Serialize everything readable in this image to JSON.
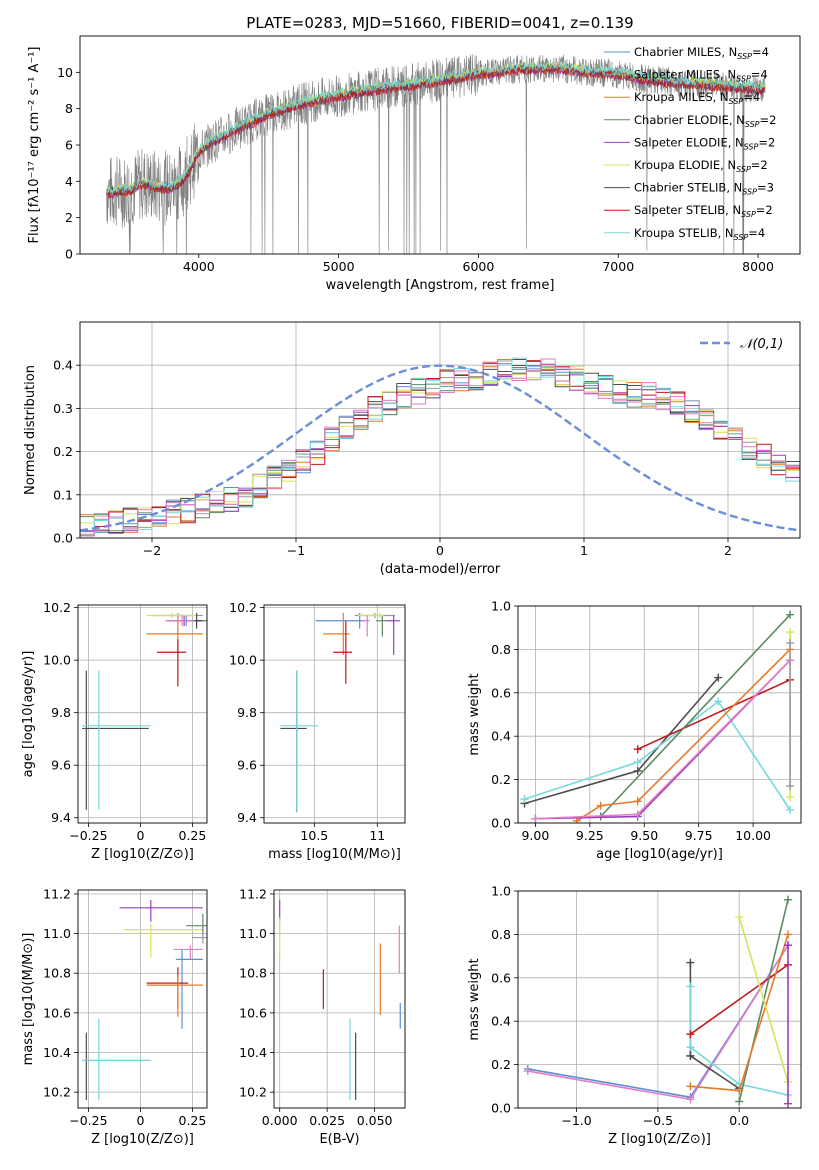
{
  "title": "PLATE=0283, MJD=51660, FIBERID=0041, z=0.139",
  "colors": {
    "chabrier_miles": "#5b8fd6",
    "salpeter_miles": "#9a9a9a",
    "kroupa_miles": "#e8792a",
    "chabrier_elodie": "#5a8a63",
    "salpeter_elodie": "#9a3fbf",
    "kroupa_elodie": "#d7e35a",
    "chabrier_stelib": "#4d4d4d",
    "salpeter_stelib": "#c0181b",
    "kroupa_stelib": "#78d8dd",
    "pink": "#e37dc4",
    "gaussian": "#6a8ed8",
    "data_grey": "#808080"
  },
  "chart_data": [
    {
      "id": "spectrum",
      "type": "line",
      "xlabel": "wavelength [Angstrom, rest frame]",
      "ylabel": "Flux [fλ10⁻¹⁷ erg cm⁻² s⁻¹ A⁻¹]",
      "xlim": [
        3150,
        8300
      ],
      "ylim": [
        0,
        12
      ],
      "xticks": [
        4000,
        5000,
        6000,
        7000,
        8000
      ],
      "yticks": [
        0,
        2,
        4,
        6,
        8,
        10
      ],
      "grid": false,
      "legend_position": "top-right",
      "legend": [
        "Chabrier MILES, N_SSP=4",
        "Salpeter MILES, N_SSP=4",
        "Kroupa MILES, N_SSP=4",
        "Chabrier ELODIE, N_SSP=2",
        "Salpeter ELODIE, N_SSP=2",
        "Kroupa ELODIE, N_SSP=2",
        "Chabrier STELIB, N_SSP=3",
        "Salpeter STELIB, N_SSP=2",
        "Kroupa STELIB, N_SSP=4"
      ],
      "model_x": [
        3340,
        3500,
        3600,
        3700,
        3800,
        3900,
        4000,
        4100,
        4300,
        4500,
        4800,
        5200,
        5600,
        6000,
        6300,
        6600,
        6800,
        7000,
        7200,
        7500,
        7800,
        8050
      ],
      "model_y": [
        3.4,
        3.5,
        3.9,
        3.7,
        3.6,
        4.2,
        5.6,
        6.2,
        7.0,
        7.7,
        8.4,
        9.0,
        9.4,
        9.9,
        10.2,
        10.2,
        10.0,
        9.9,
        9.6,
        9.4,
        9.2,
        9.1
      ],
      "data_note_range": [
        3340,
        8050
      ]
    },
    {
      "id": "residuals",
      "type": "histogram",
      "xlabel": "(data-model)/error",
      "ylabel": "Normed distribution",
      "xlim": [
        -2.5,
        2.5
      ],
      "ylim": [
        0,
        0.5
      ],
      "xticks": [
        -2,
        -1,
        0,
        1,
        2
      ],
      "yticks": [
        0.0,
        0.1,
        0.2,
        0.3,
        0.4
      ],
      "grid": true,
      "legend_position": "top-right",
      "legend": [
        "𝒩(0,1)"
      ],
      "bin_width": 0.1,
      "bins_start": -2.5,
      "base": [
        0.025,
        0.03,
        0.035,
        0.04,
        0.045,
        0.05,
        0.06,
        0.065,
        0.075,
        0.08,
        0.09,
        0.1,
        0.12,
        0.14,
        0.16,
        0.18,
        0.2,
        0.23,
        0.26,
        0.28,
        0.3,
        0.31,
        0.33,
        0.34,
        0.35,
        0.36,
        0.37,
        0.37,
        0.38,
        0.39,
        0.39,
        0.39,
        0.39,
        0.38,
        0.37,
        0.36,
        0.35,
        0.34,
        0.33,
        0.33,
        0.32,
        0.31,
        0.29,
        0.27,
        0.25,
        0.23,
        0.21,
        0.19,
        0.17,
        0.15,
        0.13,
        0.12,
        0.11,
        0.1,
        0.09,
        0.08,
        0.07,
        0.065,
        0.06,
        0.055
      ]
    },
    {
      "id": "age_vs_Z",
      "type": "errorbar",
      "xlabel": "Z [log10(Z/Z⊙)]",
      "ylabel": "age  [log10(age/yr)]",
      "xlim": [
        -0.3,
        0.32
      ],
      "ylim": [
        9.38,
        10.21
      ],
      "xticks": [
        -0.25,
        0.0,
        0.25
      ],
      "yticks": [
        9.4,
        9.6,
        9.8,
        10.0,
        10.2
      ],
      "grid": true,
      "points": [
        {
          "c": "chabrier_miles",
          "x": 0.22,
          "y": 10.15,
          "xe": [
            0.08,
            0.08
          ],
          "ye": [
            0.02,
            0.02
          ]
        },
        {
          "c": "salpeter_miles",
          "x": 0.18,
          "y": 10.17,
          "xe": [
            0.12,
            0.12
          ],
          "ye": [
            0.01,
            0.01
          ]
        },
        {
          "c": "kroupa_miles",
          "x": 0.18,
          "y": 10.1,
          "xe": [
            0.15,
            0.12
          ],
          "ye": [
            0.07,
            0.07
          ]
        },
        {
          "c": "chabrier_elodie",
          "x": 0.27,
          "y": 10.15,
          "xe": [
            0.05,
            0.05
          ],
          "ye": [
            0.01,
            0.01
          ]
        },
        {
          "c": "salpeter_elodie",
          "x": 0.21,
          "y": 10.15,
          "xe": [
            0.08,
            0.08
          ],
          "ye": [
            0.02,
            0.02
          ]
        },
        {
          "c": "kroupa_elodie",
          "x": 0.15,
          "y": 10.17,
          "xe": [
            0.12,
            0.12
          ],
          "ye": [
            0.01,
            0.01
          ]
        },
        {
          "c": "chabrier_stelib",
          "x": 0.27,
          "y": 10.15,
          "xe": [
            0.03,
            0.03
          ],
          "ye": [
            0.03,
            0.03
          ]
        },
        {
          "c": "salpeter_stelib",
          "x": 0.18,
          "y": 10.03,
          "xe": [
            0.1,
            0.04
          ],
          "ye": [
            0.13,
            0.05
          ]
        },
        {
          "c": "pink",
          "x": 0.2,
          "y": 10.15,
          "xe": [
            0.08,
            0.06
          ],
          "ye": [
            0.02,
            0.02
          ]
        },
        {
          "c": "chabrier_stelib",
          "x": -0.26,
          "y": 9.74,
          "xe": [
            0.02,
            0.3
          ],
          "ye": [
            0.31,
            0.22
          ]
        },
        {
          "c": "kroupa_stelib",
          "x": -0.2,
          "y": 9.75,
          "xe": [
            0.08,
            0.25
          ],
          "ye": [
            0.32,
            0.21
          ]
        }
      ]
    },
    {
      "id": "age_vs_mass",
      "type": "errorbar",
      "xlabel": "mass [log10(M/M⊙)]",
      "ylabel": "",
      "xlim": [
        10.1,
        11.22
      ],
      "ylim": [
        9.38,
        10.21
      ],
      "xticks": [
        10.5,
        11.0
      ],
      "yticks": [
        9.4,
        9.6,
        9.8,
        10.0,
        10.2
      ],
      "grid": true,
      "points": [
        {
          "c": "chabrier_miles",
          "x": 10.86,
          "y": 10.15,
          "xe": [
            0.35,
            0.05
          ],
          "ye": [
            0.03,
            0.03
          ]
        },
        {
          "c": "salpeter_miles",
          "x": 10.98,
          "y": 10.17,
          "xe": [
            0.16,
            0.16
          ],
          "ye": [
            0.01,
            0.01
          ]
        },
        {
          "c": "kroupa_miles",
          "x": 10.73,
          "y": 10.1,
          "xe": [
            0.16,
            0.05
          ],
          "ye": [
            0.08,
            0.08
          ]
        },
        {
          "c": "chabrier_elodie",
          "x": 11.04,
          "y": 10.15,
          "xe": [
            0.05,
            0.05
          ],
          "ye": [
            0.06,
            0.02
          ]
        },
        {
          "c": "salpeter_elodie",
          "x": 11.13,
          "y": 10.15,
          "xe": [
            0.05,
            0.05
          ],
          "ye": [
            0.13,
            0.02
          ]
        },
        {
          "c": "kroupa_elodie",
          "x": 11.02,
          "y": 10.17,
          "xe": [
            0.17,
            0.03
          ],
          "ye": [
            0.01,
            0.01
          ]
        },
        {
          "c": "salpeter_stelib",
          "x": 10.75,
          "y": 10.03,
          "xe": [
            0.1,
            0.05
          ],
          "ye": [
            0.12,
            0.12
          ]
        },
        {
          "c": "pink",
          "x": 10.92,
          "y": 10.15,
          "xe": [
            0.05,
            0.02
          ],
          "ye": [
            0.06,
            0.02
          ]
        },
        {
          "c": "chabrier_stelib",
          "x": 10.36,
          "y": 9.74,
          "xe": [
            0.13,
            0.08
          ],
          "ye": [
            0.32,
            0.22
          ]
        },
        {
          "c": "kroupa_stelib",
          "x": 10.36,
          "y": 9.75,
          "xe": [
            0.13,
            0.17
          ],
          "ye": [
            0.33,
            0.21
          ]
        }
      ]
    },
    {
      "id": "weight_vs_age",
      "type": "line",
      "xlabel": "age  [log10(age/yr)]",
      "ylabel": "mass weight",
      "xlim": [
        8.92,
        10.22
      ],
      "ylim": [
        0,
        1.0
      ],
      "xticks": [
        9.0,
        9.25,
        9.5,
        9.75,
        10.0
      ],
      "xticklabels": [
        "9.00",
        "9.25",
        "9.50",
        "9.75",
        "10.00"
      ],
      "yticks": [
        0.0,
        0.2,
        0.4,
        0.6,
        0.8,
        1.0
      ],
      "grid": true,
      "series": [
        {
          "c": "chabrier_stelib",
          "x": [
            8.95,
            9.47,
            9.84
          ],
          "y": [
            0.09,
            0.24,
            0.67
          ]
        },
        {
          "c": "kroupa_stelib",
          "x": [
            8.95,
            9.47,
            9.84,
            10.17
          ],
          "y": [
            0.11,
            0.28,
            0.56,
            0.06
          ]
        },
        {
          "c": "salpeter_stelib",
          "x": [
            9.47,
            10.17
          ],
          "y": [
            0.34,
            0.66
          ]
        },
        {
          "c": "chabrier_elodie",
          "x": [
            9.3,
            10.17
          ],
          "y": [
            0.03,
            0.96
          ]
        },
        {
          "c": "kroupa_miles",
          "x": [
            9.19,
            9.3,
            9.47,
            10.17
          ],
          "y": [
            0.01,
            0.08,
            0.1,
            0.8
          ]
        },
        {
          "c": "salpeter_elodie",
          "x": [
            9.0,
            9.47,
            10.17
          ],
          "y": [
            0.02,
            0.03,
            0.75
          ]
        },
        {
          "c": "pink",
          "x": [
            9.0,
            9.47,
            10.17
          ],
          "y": [
            0.02,
            0.04,
            0.75
          ]
        },
        {
          "c": "kroupa_elodie",
          "x": [
            10.17,
            10.17
          ],
          "y": [
            0.12,
            0.88
          ]
        },
        {
          "c": "salpeter_miles",
          "x": [
            10.17,
            10.17
          ],
          "y": [
            0.17,
            0.83
          ]
        }
      ]
    },
    {
      "id": "mass_vs_Z",
      "type": "errorbar",
      "xlabel": "Z [log10(Z/Z⊙)]",
      "ylabel": "mass [log10(M/M⊙)]",
      "xlim": [
        -0.3,
        0.32
      ],
      "ylim": [
        10.12,
        11.22
      ],
      "xticks": [
        -0.25,
        0.0,
        0.25
      ],
      "yticks": [
        10.2,
        10.4,
        10.6,
        10.8,
        11.0,
        11.2
      ],
      "grid": true,
      "points": [
        {
          "c": "salpeter_elodie",
          "x": 0.05,
          "y": 11.13,
          "xe": [
            0.15,
            0.25
          ],
          "ye": [
            0.07,
            0.04
          ]
        },
        {
          "c": "kroupa_elodie",
          "x": 0.05,
          "y": 11.02,
          "xe": [
            0.13,
            0.25
          ],
          "ye": [
            0.14,
            0.03
          ]
        },
        {
          "c": "chabrier_elodie",
          "x": 0.3,
          "y": 11.04,
          "xe": [
            0.08,
            0.02
          ],
          "ye": [
            0.04,
            0.06
          ]
        },
        {
          "c": "salpeter_miles",
          "x": 0.3,
          "y": 10.98,
          "xe": [
            0.05,
            0.02
          ],
          "ye": [
            0.03,
            0.03
          ]
        },
        {
          "c": "chabrier_miles",
          "x": 0.2,
          "y": 10.87,
          "xe": [
            0.03,
            0.1
          ],
          "ye": [
            0.35,
            0.05
          ]
        },
        {
          "c": "pink",
          "x": 0.24,
          "y": 10.92,
          "xe": [
            0.08,
            0.06
          ],
          "ye": [
            0.05,
            0.02
          ]
        },
        {
          "c": "salpeter_stelib",
          "x": 0.18,
          "y": 10.75,
          "xe": [
            0.15,
            0.05
          ],
          "ye": [
            0.13,
            0.08
          ]
        },
        {
          "c": "kroupa_miles",
          "x": 0.18,
          "y": 10.74,
          "xe": [
            0.15,
            0.12
          ],
          "ye": [
            0.16,
            0.05
          ]
        },
        {
          "c": "chabrier_stelib",
          "x": -0.26,
          "y": 10.36,
          "xe": [
            0.02,
            0.3
          ],
          "ye": [
            0.2,
            0.14
          ]
        },
        {
          "c": "kroupa_stelib",
          "x": -0.2,
          "y": 10.36,
          "xe": [
            0.08,
            0.25
          ],
          "ye": [
            0.2,
            0.21
          ]
        }
      ]
    },
    {
      "id": "mass_vs_ebv",
      "type": "errorbar",
      "xlabel": "E(B-V)",
      "ylabel": "",
      "xlim": [
        -0.003,
        0.066
      ],
      "ylim": [
        10.12,
        11.22
      ],
      "xticks": [
        0.0,
        0.025,
        0.05
      ],
      "xticklabels": [
        "0.000",
        "0.025",
        "0.050"
      ],
      "yticks": [
        10.2,
        10.4,
        10.6,
        10.8,
        11.0,
        11.2
      ],
      "grid": true,
      "points": [
        {
          "c": "salpeter_elodie",
          "x": 0.0,
          "y": 11.13,
          "xe": [
            0,
            0
          ],
          "ye": [
            0.07,
            0.04
          ]
        },
        {
          "c": "kroupa_elodie",
          "x": 0.0,
          "y": 11.02,
          "xe": [
            0,
            0
          ],
          "ye": [
            0.14,
            0.06
          ]
        },
        {
          "c": "salpeter_stelib",
          "x": 0.023,
          "y": 10.72,
          "xe": [
            0,
            0
          ],
          "ye": [
            0.1,
            0.1
          ]
        },
        {
          "c": "kroupa_stelib",
          "x": 0.037,
          "y": 10.36,
          "xe": [
            0,
            0
          ],
          "ye": [
            0.2,
            0.21
          ]
        },
        {
          "c": "chabrier_stelib",
          "x": 0.04,
          "y": 10.36,
          "xe": [
            0,
            0
          ],
          "ye": [
            0.2,
            0.14
          ]
        },
        {
          "c": "kroupa_miles",
          "x": 0.053,
          "y": 10.75,
          "xe": [
            0,
            0
          ],
          "ye": [
            0.16,
            0.2
          ]
        },
        {
          "c": "pink",
          "x": 0.063,
          "y": 10.92,
          "xe": [
            0,
            0
          ],
          "ye": [
            0.12,
            0.12
          ]
        },
        {
          "c": "chabrier_miles",
          "x": 0.0635,
          "y": 10.6,
          "xe": [
            0,
            0
          ],
          "ye": [
            0.08,
            0.05
          ]
        }
      ]
    },
    {
      "id": "weight_vs_Z",
      "type": "line",
      "xlabel": "Z [log10(Z/Z⊙)]",
      "ylabel": "mass weight",
      "xlim": [
        -1.36,
        0.38
      ],
      "ylim": [
        0,
        1.0
      ],
      "xticks": [
        -1.0,
        -0.5,
        0.0
      ],
      "xticklabels": [
        "−1.0",
        "−0.5",
        "0.0"
      ],
      "yticks": [
        0.0,
        0.2,
        0.4,
        0.6,
        0.8,
        1.0
      ],
      "grid": true,
      "series": [
        {
          "c": "chabrier_miles",
          "x": [
            -1.3,
            -0.3,
            0.3
          ],
          "y": [
            0.18,
            0.05,
            0.75
          ]
        },
        {
          "c": "pink",
          "x": [
            -1.3,
            -0.3,
            0.3
          ],
          "y": [
            0.17,
            0.04,
            0.75
          ]
        },
        {
          "c": "chabrier_stelib",
          "x": [
            -0.3,
            -0.3,
            -0.3,
            0.0
          ],
          "y": [
            0.67,
            0.24,
            0.24,
            0.09
          ]
        },
        {
          "c": "kroupa_stelib",
          "x": [
            -0.3,
            -0.3,
            0.0,
            0.3
          ],
          "y": [
            0.56,
            0.28,
            0.11,
            0.06
          ]
        },
        {
          "c": "salpeter_stelib",
          "x": [
            -0.3,
            0.3
          ],
          "y": [
            0.34,
            0.66
          ]
        },
        {
          "c": "chabrier_elodie",
          "x": [
            0.0,
            0.3
          ],
          "y": [
            0.03,
            0.96
          ]
        },
        {
          "c": "kroupa_miles",
          "x": [
            -0.3,
            0.0,
            0.3
          ],
          "y": [
            0.1,
            0.08,
            0.8
          ]
        },
        {
          "c": "kroupa_elodie",
          "x": [
            0.0,
            0.3
          ],
          "y": [
            0.88,
            0.12
          ]
        },
        {
          "c": "salpeter_elodie",
          "x": [
            0.3,
            0.3
          ],
          "y": [
            0.02,
            0.75
          ]
        }
      ]
    }
  ]
}
